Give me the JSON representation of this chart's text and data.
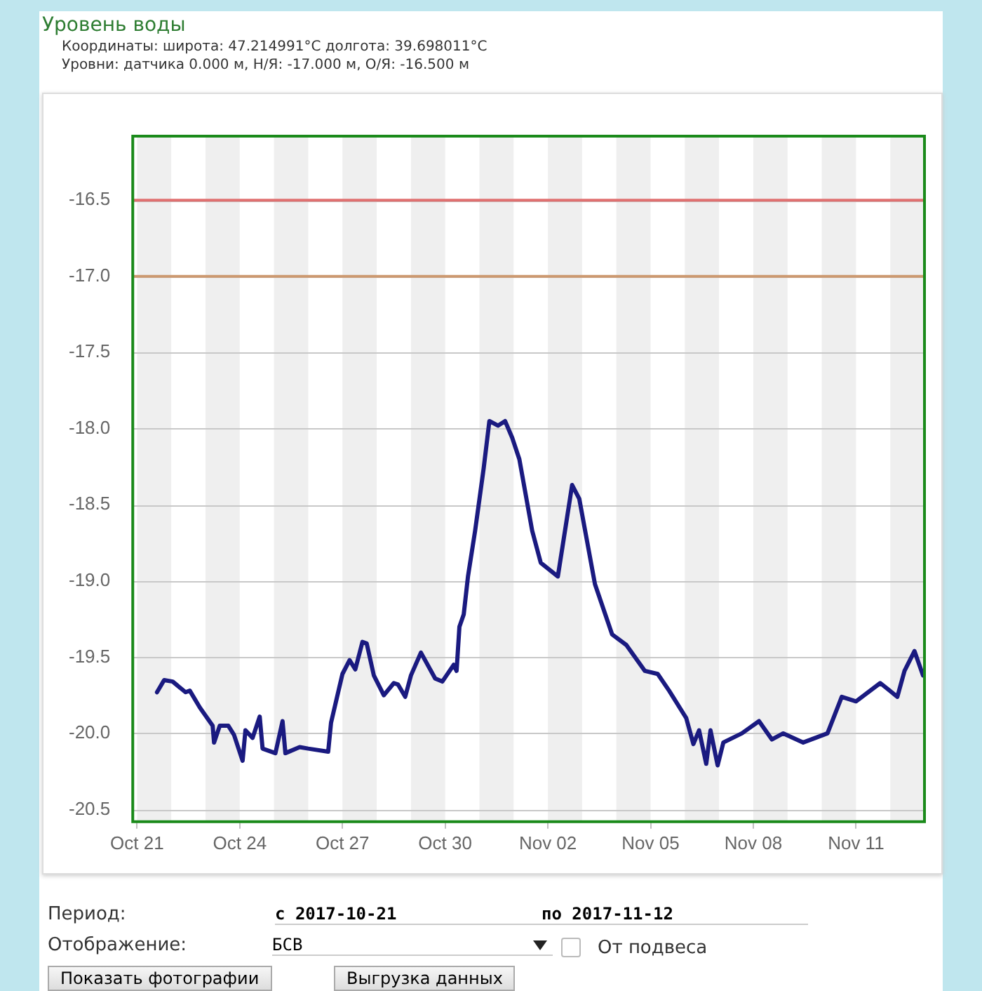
{
  "chart_data": {
    "type": "line",
    "title": "Уровень воды",
    "annotations": [
      "Координаты: широта: 47.214991°C долгота: 39.698011°C",
      "Уровни: датчика 0.000 м, Н/Я: -17.000 м, О/Я: -16.500 м",
      "Период:",
      "с 2017-10-21",
      "по 2017-11-12",
      "Отображение:",
      "БСВ",
      "От подвеса",
      "Показать фотографии",
      "Выгрузка данных"
    ],
    "x": [
      "2017-10-21T14:00",
      "2017-10-21T19:00",
      "2017-10-22T01:00",
      "2017-10-22T10:00",
      "2017-10-22T13:00",
      "2017-10-22T20:00",
      "2017-10-23T05:00",
      "2017-10-23T06:00",
      "2017-10-23T10:00",
      "2017-10-23T16:00",
      "2017-10-23T20:00",
      "2017-10-24T02:00",
      "2017-10-24T04:00",
      "2017-10-24T09:00",
      "2017-10-24T14:00",
      "2017-10-24T16:00",
      "2017-10-25T01:00",
      "2017-10-25T06:00",
      "2017-10-25T08:00",
      "2017-10-25T18:00",
      "2017-10-26T00:00",
      "2017-10-26T14:00",
      "2017-10-26T16:00",
      "2017-10-27T00:00",
      "2017-10-27T05:00",
      "2017-10-27T09:00",
      "2017-10-27T14:00",
      "2017-10-27T17:00",
      "2017-10-27T22:00",
      "2017-10-28T05:00",
      "2017-10-28T12:00",
      "2017-10-28T15:00",
      "2017-10-28T20:00",
      "2017-10-29T00:00",
      "2017-10-29T07:00",
      "2017-10-29T17:00",
      "2017-10-29T22:00",
      "2017-10-30T06:00",
      "2017-10-30T08:00",
      "2017-10-30T10:00",
      "2017-10-30T13:00",
      "2017-10-30T16:00",
      "2017-10-30T21:00",
      "2017-10-31T03:00",
      "2017-10-31T07:00",
      "2017-10-31T13:00",
      "2017-10-31T18:00",
      "2017-10-31T23:00",
      "2017-11-01T04:00",
      "2017-11-01T13:00",
      "2017-11-01T19:00",
      "2017-11-02T07:00",
      "2017-11-02T12:00",
      "2017-11-02T17:00",
      "2017-11-02T22:00",
      "2017-11-03T09:00",
      "2017-11-03T21:00",
      "2017-11-04T07:00",
      "2017-11-04T20:00",
      "2017-11-05T05:00",
      "2017-11-05T13:00",
      "2017-11-06T01:00",
      "2017-11-06T06:00",
      "2017-11-06T10:00",
      "2017-11-06T15:00",
      "2017-11-06T18:00",
      "2017-11-06T23:00",
      "2017-11-07T03:00",
      "2017-11-07T16:00",
      "2017-11-08T04:00",
      "2017-11-08T13:00",
      "2017-11-08T21:00",
      "2017-11-09T11:00",
      "2017-11-10T04:00",
      "2017-11-10T14:00",
      "2017-11-11T00:00",
      "2017-11-11T17:00",
      "2017-11-12T05:00",
      "2017-11-12T10:00",
      "2017-11-12T17:00",
      "2017-11-12T23:00"
    ],
    "series": [
      {
        "color": "#1a1a80",
        "values": [
          -19.73,
          -19.65,
          -19.66,
          -19.73,
          -19.72,
          -19.83,
          -19.95,
          -20.06,
          -19.95,
          -19.95,
          -20.01,
          -20.18,
          -19.98,
          -20.03,
          -19.89,
          -20.1,
          -20.13,
          -19.92,
          -20.13,
          -20.09,
          -20.1,
          -20.12,
          -19.93,
          -19.61,
          -19.52,
          -19.58,
          -19.4,
          -19.41,
          -19.62,
          -19.75,
          -19.67,
          -19.68,
          -19.76,
          -19.62,
          -19.47,
          -19.64,
          -19.66,
          -19.55,
          -19.59,
          -19.3,
          -19.22,
          -18.97,
          -18.67,
          -18.26,
          -17.95,
          -17.98,
          -17.95,
          -18.06,
          -18.2,
          -18.67,
          -18.88,
          -18.97,
          -18.67,
          -18.37,
          -18.46,
          -19.02,
          -19.35,
          -19.42,
          -19.59,
          -19.61,
          -19.72,
          -19.9,
          -20.07,
          -19.98,
          -20.2,
          -19.98,
          -20.21,
          -20.06,
          -20,
          -19.92,
          -20.04,
          -20,
          -20.06,
          -20,
          -19.76,
          -19.79,
          -19.67,
          -19.76,
          -19.59,
          -19.46,
          -19.62
        ]
      }
    ],
    "xlim": [
      "2017-10-20T21:00",
      "2017-11-13T00:00"
    ],
    "xticks": [
      {
        "value": "2017-10-21",
        "label": "Oct 21"
      },
      {
        "value": "2017-10-24",
        "label": "Oct 24"
      },
      {
        "value": "2017-10-27",
        "label": "Oct 27"
      },
      {
        "value": "2017-10-30",
        "label": "Oct 30"
      },
      {
        "value": "2017-11-02",
        "label": "Nov 02"
      },
      {
        "value": "2017-11-05",
        "label": "Nov 05"
      },
      {
        "value": "2017-11-08",
        "label": "Nov 08"
      },
      {
        "value": "2017-11-11",
        "label": "Nov 11"
      }
    ],
    "ylim": [
      -20.58,
      -16.08
    ],
    "yticks": [
      -16.5,
      {
        "value": -17,
        "label": "-17.0"
      },
      -17.5,
      {
        "value": -18,
        "label": "-18.0"
      },
      -18.5,
      {
        "value": -19,
        "label": "-19.0"
      },
      -19.5,
      {
        "value": -20,
        "label": "-20.0"
      },
      -20.5
    ],
    "ref_lines": [
      {
        "axis": "y",
        "value": -16.5,
        "color": "#e07070"
      },
      {
        "axis": "y",
        "value": -17,
        "color": "#cc9970"
      }
    ],
    "bands": [
      {
        "axis": "x",
        "from": "2017-10-21",
        "to": "2017-10-22",
        "color": "#efefef"
      },
      {
        "axis": "x",
        "from": "2017-10-23",
        "to": "2017-10-24",
        "color": "#efefef"
      },
      {
        "axis": "x",
        "from": "2017-10-25",
        "to": "2017-10-26",
        "color": "#efefef"
      },
      {
        "axis": "x",
        "from": "2017-10-27",
        "to": "2017-10-28",
        "color": "#efefef"
      },
      {
        "axis": "x",
        "from": "2017-10-29",
        "to": "2017-10-30",
        "color": "#efefef"
      },
      {
        "axis": "x",
        "from": "2017-10-31",
        "to": "2017-11-01",
        "color": "#efefef"
      },
      {
        "axis": "x",
        "from": "2017-11-02",
        "to": "2017-11-03",
        "color": "#efefef"
      },
      {
        "axis": "x",
        "from": "2017-11-04",
        "to": "2017-11-05",
        "color": "#efefef"
      },
      {
        "axis": "x",
        "from": "2017-11-06",
        "to": "2017-11-07",
        "color": "#efefef"
      },
      {
        "axis": "x",
        "from": "2017-11-08",
        "to": "2017-11-09",
        "color": "#efefef"
      },
      {
        "axis": "x",
        "from": "2017-11-10",
        "to": "2017-11-11",
        "color": "#efefef"
      },
      {
        "axis": "x",
        "from": "2017-11-12",
        "to": "2017-11-13",
        "color": "#efefef"
      }
    ],
    "grid": "y",
    "legend": false,
    "marker": "none",
    "line_style": "solid"
  }
}
